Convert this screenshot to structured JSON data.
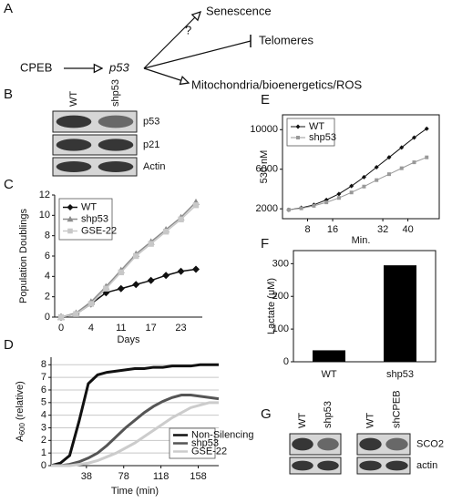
{
  "panel_labels": [
    "A",
    "B",
    "C",
    "D",
    "E",
    "F",
    "G"
  ],
  "diagram": {
    "source": "CPEB",
    "hub": "p53",
    "question": "?",
    "targets": [
      "Senescence",
      "Telomeres",
      "Mitochondria/bioenergetics/ROS"
    ]
  },
  "blot_b": {
    "lanes": [
      "WT",
      "shp53"
    ],
    "rows": [
      "p53",
      "p21",
      "Actin"
    ]
  },
  "blot_g": {
    "lanes": [
      "WT",
      "shp53",
      "WT",
      "shCPEB"
    ],
    "rows": [
      "SCO2",
      "actin"
    ]
  },
  "chart_data": [
    {
      "type": "line",
      "xlabel": "Days",
      "ylabel": "Population Doublings",
      "categories": [
        "0",
        null,
        "4",
        null,
        "11",
        null,
        "17",
        null,
        "23",
        null
      ],
      "series": [
        {
          "name": "WT",
          "color": "#111111",
          "marker": "diamond",
          "values": [
            0,
            0.3,
            1.3,
            2.4,
            2.8,
            3.2,
            3.6,
            4.1,
            4.5,
            4.7
          ]
        },
        {
          "name": "shp53",
          "color": "#8c8c8c",
          "marker": "triangle",
          "values": [
            0,
            0.4,
            1.5,
            3.0,
            4.6,
            6.2,
            7.4,
            8.6,
            9.8,
            11.3
          ]
        },
        {
          "name": "GSE-22",
          "color": "#c8c8c8",
          "marker": "square",
          "values": [
            0,
            0.3,
            1.3,
            2.8,
            4.4,
            6.0,
            7.2,
            8.4,
            9.6,
            11.0
          ]
        }
      ],
      "ylim": [
        0,
        12
      ],
      "yticks": [
        0,
        2,
        4,
        6,
        8,
        10,
        12
      ],
      "legend": "upper left"
    },
    {
      "type": "line",
      "xlabel": "Time (min)",
      "ylabel": "A",
      "ylabel_sub": "600",
      "ylabel_tail": " (relative)",
      "x": [
        0,
        10,
        20,
        30,
        40,
        50,
        60,
        70,
        80,
        90,
        100,
        110,
        120,
        130,
        140,
        150,
        160,
        170,
        180
      ],
      "series": [
        {
          "name": "Non-Silencing",
          "color": "#111111",
          "marker": "none",
          "values": [
            0,
            0.2,
            0.8,
            3.5,
            6.5,
            7.2,
            7.4,
            7.5,
            7.6,
            7.7,
            7.7,
            7.8,
            7.8,
            7.9,
            7.9,
            7.9,
            8,
            8,
            8
          ]
        },
        {
          "name": "shp53",
          "color": "#555555",
          "marker": "none",
          "values": [
            0,
            0,
            0.1,
            0.3,
            0.6,
            1.0,
            1.6,
            2.3,
            3.0,
            3.6,
            4.2,
            4.7,
            5.1,
            5.4,
            5.6,
            5.6,
            5.5,
            5.4,
            5.3
          ]
        },
        {
          "name": "GSE-22",
          "color": "#cccccc",
          "marker": "none",
          "values": [
            0,
            0,
            0,
            0.1,
            0.2,
            0.4,
            0.7,
            1.0,
            1.4,
            1.8,
            2.3,
            2.8,
            3.3,
            3.8,
            4.2,
            4.6,
            4.8,
            5.0,
            5.0
          ]
        }
      ],
      "xlim": [
        0,
        180
      ],
      "xticks": [
        38,
        78,
        118,
        158
      ],
      "ylim": [
        0,
        8.6
      ],
      "yticks": [
        0,
        1,
        2,
        3,
        4,
        5,
        6,
        7,
        8
      ],
      "grid": true,
      "legend": "lower right"
    },
    {
      "type": "line",
      "xlabel": "Min.",
      "ylabel": "530 nM",
      "x": [
        2,
        6,
        10,
        14,
        18,
        22,
        26,
        30,
        34,
        38,
        42,
        46
      ],
      "series": [
        {
          "name": "WT",
          "color": "#111111",
          "marker": "diamond",
          "values": [
            1900,
            2100,
            2400,
            2900,
            3500,
            4300,
            5200,
            6200,
            7200,
            8200,
            9200,
            10100
          ]
        },
        {
          "name": "shp53",
          "color": "#999999",
          "marker": "square",
          "values": [
            1900,
            2050,
            2300,
            2650,
            3100,
            3650,
            4250,
            4900,
            5500,
            6100,
            6700,
            7200
          ]
        }
      ],
      "xlim": [
        0,
        50
      ],
      "xticks": [
        8,
        16,
        32,
        40
      ],
      "ylim": [
        1000,
        11500
      ],
      "yticks": [
        2000,
        6000,
        10000
      ],
      "frame": true,
      "legend": "upper left"
    },
    {
      "type": "bar",
      "ylabel": "Lactate (μM)",
      "categories": [
        "WT",
        "shp53"
      ],
      "values": [
        35,
        295
      ],
      "color": "#000000",
      "ylim": [
        0,
        340
      ],
      "yticks": [
        0,
        100,
        200,
        300
      ],
      "frame": true
    }
  ]
}
